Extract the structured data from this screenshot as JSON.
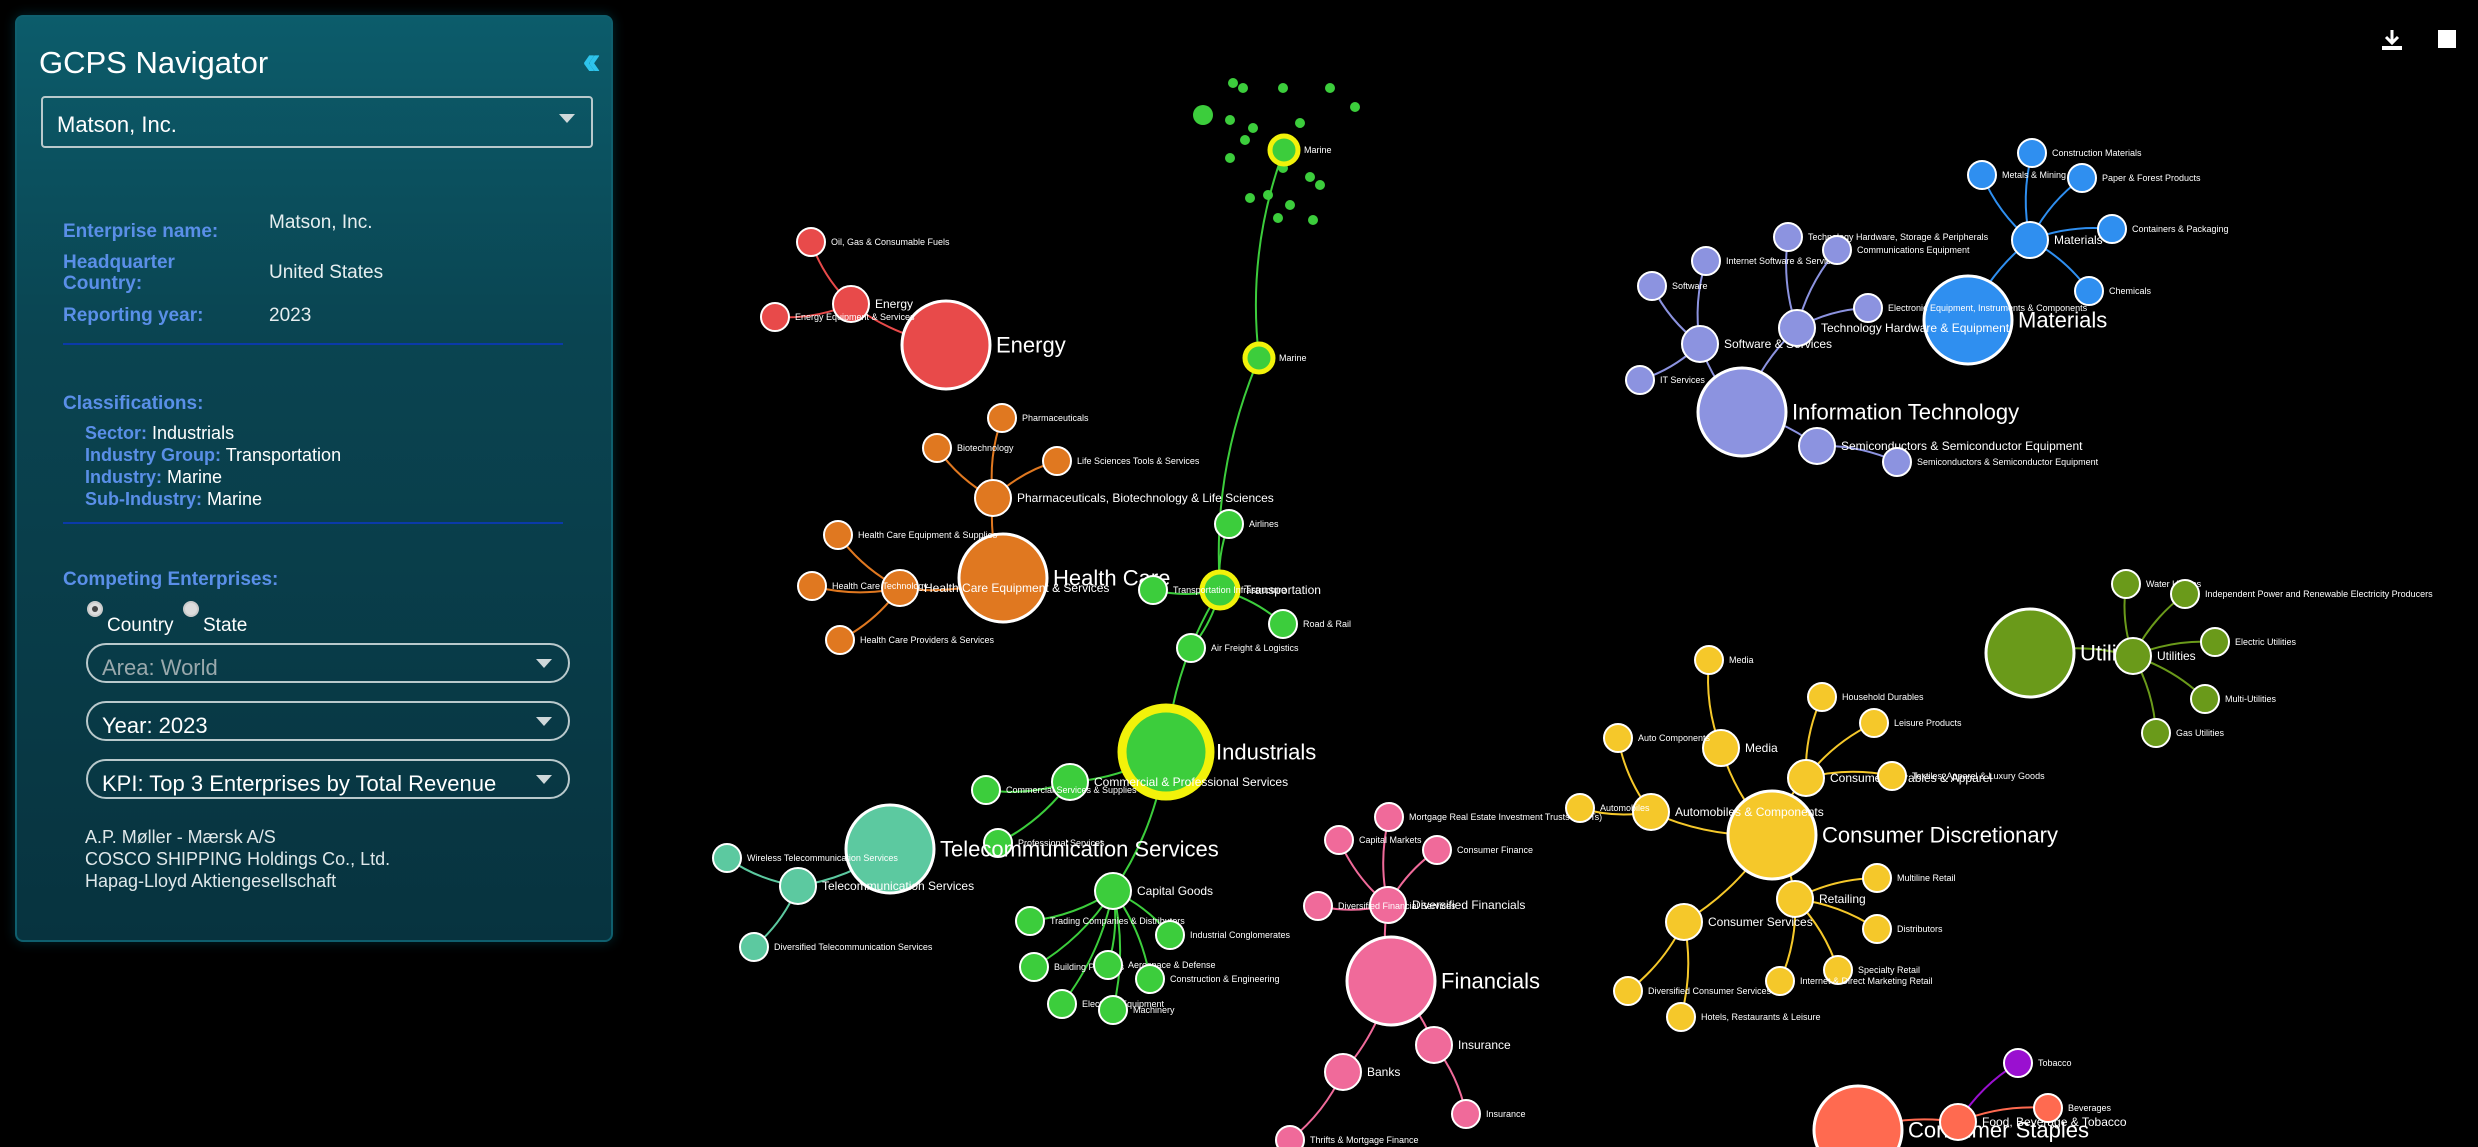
{
  "app": {
    "title": "GCPS Navigator",
    "company": "Matson, Inc."
  },
  "details": {
    "enterprise_label": "Enterprise name:",
    "enterprise_value": "Matson, Inc.",
    "hq_label": "Headquarter Country:",
    "hq_value": "United States",
    "year_label": "Reporting year:",
    "year_value": "2023"
  },
  "classifications": {
    "title": "Classifications:",
    "sector_label": "Sector:",
    "sector": "Industrials",
    "group_label": "Industry Group:",
    "group": "Transportation",
    "industry_label": "Industry:",
    "industry": "Marine",
    "sub_label": "Sub-Industry:",
    "sub": "Marine"
  },
  "competing": {
    "title": "Competing Enterprises:",
    "radio_country": "Country",
    "radio_state": "State",
    "area": "Area: World",
    "year": "Year: 2023",
    "kpi": "KPI: Top 3 Enterprises by Total Revenue",
    "list": [
      "A.P. Møller - Mærsk A/S",
      "COSCO SHIPPING Holdings Co., Ltd.",
      "Hapag-Lloyd Aktiengesellschaft"
    ]
  },
  "toolbar": {
    "download_icon": "download-icon",
    "fullscreen_icon": "square-icon"
  },
  "colors": {
    "energy": "#e84a4a",
    "materials": "#2f8ff0",
    "it": "#8c93e0",
    "utilities": "#6a9a1a",
    "health": "#e07820",
    "industrials": "#3ccd3c",
    "telecom": "#5cc9a0",
    "financials": "#f06a9a",
    "consumer_disc": "#f5c82a",
    "staples": "#ff6a50",
    "tobacco": "#9a10d0",
    "highlight": "#f2f20a"
  },
  "graph": {
    "nodes": [
      {
        "id": "energy",
        "l": "Energy",
        "c": "energy",
        "s": "lg"
      },
      {
        "id": "energy_g",
        "l": "Energy",
        "c": "energy",
        "s": "sm"
      },
      {
        "id": "ogcf",
        "l": "Oil, Gas & Consumable Fuels",
        "c": "energy",
        "s": "xs"
      },
      {
        "id": "eeq",
        "l": "Energy Equipment & Services",
        "c": "energy",
        "s": "xs"
      },
      {
        "id": "materials",
        "l": "Materials",
        "c": "materials",
        "s": "lg"
      },
      {
        "id": "mat_g",
        "l": "Materials",
        "c": "materials",
        "s": "sm"
      },
      {
        "id": "constr",
        "l": "Construction Materials",
        "c": "materials",
        "s": "xs"
      },
      {
        "id": "metals",
        "l": "Metals & Mining",
        "c": "materials",
        "s": "xs"
      },
      {
        "id": "paper",
        "l": "Paper & Forest Products",
        "c": "materials",
        "s": "xs"
      },
      {
        "id": "contain",
        "l": "Containers & Packaging",
        "c": "materials",
        "s": "xs"
      },
      {
        "id": "chem",
        "l": "Chemicals",
        "c": "materials",
        "s": "xs"
      },
      {
        "id": "it",
        "l": "Information Technology",
        "c": "it",
        "s": "lg"
      },
      {
        "id": "sw_g",
        "l": "Software & Services",
        "c": "it",
        "s": "sm"
      },
      {
        "id": "hw_g",
        "l": "Technology Hardware & Equipment",
        "c": "it",
        "s": "sm"
      },
      {
        "id": "semi_g",
        "l": "Semiconductors & Semiconductor Equipment",
        "c": "it",
        "s": "sm"
      },
      {
        "id": "semi",
        "l": "Semiconductors & Semiconductor Equipment",
        "c": "it",
        "s": "xs"
      },
      {
        "id": "software",
        "l": "Software",
        "c": "it",
        "s": "xs"
      },
      {
        "id": "itserv",
        "l": "IT Services",
        "c": "it",
        "s": "xs"
      },
      {
        "id": "isvc",
        "l": "Internet Software & Services",
        "c": "it",
        "s": "xs"
      },
      {
        "id": "ths",
        "l": "Technology Hardware, Storage & Peripherals",
        "c": "it",
        "s": "xs"
      },
      {
        "id": "comm",
        "l": "Communications Equipment",
        "c": "it",
        "s": "xs"
      },
      {
        "id": "elec",
        "l": "Electronic Equipment, Instruments & Components",
        "c": "it",
        "s": "xs"
      },
      {
        "id": "util",
        "l": "Utilities",
        "c": "utilities",
        "s": "lg"
      },
      {
        "id": "util_g",
        "l": "Utilities",
        "c": "utilities",
        "s": "sm"
      },
      {
        "id": "water",
        "l": "Water Utilities",
        "c": "utilities",
        "s": "xs"
      },
      {
        "id": "ipp",
        "l": "Independent Power and Renewable Electricity Producers",
        "c": "utilities",
        "s": "xs"
      },
      {
        "id": "eutil",
        "l": "Electric Utilities",
        "c": "utilities",
        "s": "xs"
      },
      {
        "id": "multi",
        "l": "Multi-Utilities",
        "c": "utilities",
        "s": "xs"
      },
      {
        "id": "gas",
        "l": "Gas Utilities",
        "c": "utilities",
        "s": "xs"
      },
      {
        "id": "health",
        "l": "Health Care",
        "c": "health",
        "s": "lg"
      },
      {
        "id": "pharma_g",
        "l": "Pharmaceuticals, Biotechnology & Life Sciences",
        "c": "health",
        "s": "sm"
      },
      {
        "id": "hce_g",
        "l": "Health Care Equipment & Services",
        "c": "health",
        "s": "sm"
      },
      {
        "id": "pharma",
        "l": "Pharmaceuticals",
        "c": "health",
        "s": "xs"
      },
      {
        "id": "biotech",
        "l": "Biotechnology",
        "c": "health",
        "s": "xs"
      },
      {
        "id": "lsts",
        "l": "Life Sciences Tools & Services",
        "c": "health",
        "s": "xs"
      },
      {
        "id": "hces",
        "l": "Health Care Equipment & Supplies",
        "c": "health",
        "s": "xs"
      },
      {
        "id": "hctech",
        "l": "Health Care Technology",
        "c": "health",
        "s": "xs"
      },
      {
        "id": "hcps",
        "l": "Health Care Providers & Services",
        "c": "health",
        "s": "xs"
      },
      {
        "id": "ind",
        "l": "Industrials",
        "c": "industrials",
        "s": "lg",
        "hl": true
      },
      {
        "id": "trans_g",
        "l": "Transportation",
        "c": "industrials",
        "s": "sm",
        "hl": true
      },
      {
        "id": "marine",
        "l": "Marine",
        "c": "industrials",
        "s": "xs",
        "hl": true
      },
      {
        "id": "airlines",
        "l": "Airlines",
        "c": "industrials",
        "s": "xs"
      },
      {
        "id": "tinf",
        "l": "Transportation Infrastructure",
        "c": "industrials",
        "s": "xs"
      },
      {
        "id": "road",
        "l": "Road & Rail",
        "c": "industrials",
        "s": "xs"
      },
      {
        "id": "airf",
        "l": "Air Freight & Logistics",
        "c": "industrials",
        "s": "xs"
      },
      {
        "id": "cps_g",
        "l": "Commercial & Professional Services",
        "c": "industrials",
        "s": "sm"
      },
      {
        "id": "css",
        "l": "Commercial Services & Supplies",
        "c": "industrials",
        "s": "xs"
      },
      {
        "id": "prof",
        "l": "Professional Services",
        "c": "industrials",
        "s": "xs"
      },
      {
        "id": "cap_g",
        "l": "Capital Goods",
        "c": "industrials",
        "s": "sm"
      },
      {
        "id": "tcd",
        "l": "Trading Companies & Distributors",
        "c": "industrials",
        "s": "xs"
      },
      {
        "id": "icong",
        "l": "Industrial Conglomerates",
        "c": "industrials",
        "s": "xs"
      },
      {
        "id": "bprod",
        "l": "Building Products",
        "c": "industrials",
        "s": "xs"
      },
      {
        "id": "aero",
        "l": "Aerospace & Defense",
        "c": "industrials",
        "s": "xs"
      },
      {
        "id": "ceng",
        "l": "Construction & Engineering",
        "c": "industrials",
        "s": "xs"
      },
      {
        "id": "eleq",
        "l": "Electrical Equipment",
        "c": "industrials",
        "s": "xs"
      },
      {
        "id": "mach",
        "l": "Machinery",
        "c": "industrials",
        "s": "xs"
      },
      {
        "id": "telecom",
        "l": "Telecommunication Services",
        "c": "telecom",
        "s": "lg"
      },
      {
        "id": "tel_g",
        "l": "Telecommunication Services",
        "c": "telecom",
        "s": "sm"
      },
      {
        "id": "wts",
        "l": "Wireless Telecommunication Services",
        "c": "telecom",
        "s": "xs"
      },
      {
        "id": "dts",
        "l": "Diversified Telecommunication Services",
        "c": "telecom",
        "s": "xs"
      },
      {
        "id": "fin",
        "l": "Financials",
        "c": "financials",
        "s": "lg"
      },
      {
        "id": "divfin_g",
        "l": "Diversified Financials",
        "c": "financials",
        "s": "sm"
      },
      {
        "id": "mreit",
        "l": "Mortgage Real Estate Investment Trusts (REITs)",
        "c": "financials",
        "s": "xs"
      },
      {
        "id": "capm",
        "l": "Capital Markets",
        "c": "financials",
        "s": "xs"
      },
      {
        "id": "cfin",
        "l": "Consumer Finance",
        "c": "financials",
        "s": "xs"
      },
      {
        "id": "dfs",
        "l": "Diversified Financial Services",
        "c": "financials",
        "s": "xs"
      },
      {
        "id": "ins_g",
        "l": "Insurance",
        "c": "financials",
        "s": "sm"
      },
      {
        "id": "ins",
        "l": "Insurance",
        "c": "financials",
        "s": "xs"
      },
      {
        "id": "banks_g",
        "l": "Banks",
        "c": "financials",
        "s": "sm"
      },
      {
        "id": "thrifts",
        "l": "Thrifts & Mortgage Finance",
        "c": "financials",
        "s": "xs"
      },
      {
        "id": "cd",
        "l": "Consumer Discretionary",
        "c": "consumer_disc",
        "s": "lg"
      },
      {
        "id": "media_g",
        "l": "Media",
        "c": "consumer_disc",
        "s": "sm"
      },
      {
        "id": "media",
        "l": "Media",
        "c": "consumer_disc",
        "s": "xs"
      },
      {
        "id": "auto_g",
        "l": "Automobiles & Components",
        "c": "consumer_disc",
        "s": "sm"
      },
      {
        "id": "autocomp",
        "l": "Auto Components",
        "c": "consumer_disc",
        "s": "xs"
      },
      {
        "id": "autos",
        "l": "Automobiles",
        "c": "consumer_disc",
        "s": "xs"
      },
      {
        "id": "cda_g",
        "l": "Consumer Durables & Apparel",
        "c": "consumer_disc",
        "s": "sm"
      },
      {
        "id": "hdur",
        "l": "Household Durables",
        "c": "consumer_disc",
        "s": "xs"
      },
      {
        "id": "leis",
        "l": "Leisure Products",
        "c": "consumer_disc",
        "s": "xs"
      },
      {
        "id": "tal",
        "l": "Textiles, Apparel & Luxury Goods",
        "c": "consumer_disc",
        "s": "xs"
      },
      {
        "id": "retail_g",
        "l": "Retailing",
        "c": "consumer_disc",
        "s": "sm"
      },
      {
        "id": "mline",
        "l": "Multiline Retail",
        "c": "consumer_disc",
        "s": "xs"
      },
      {
        "id": "dist",
        "l": "Distributors",
        "c": "consumer_disc",
        "s": "xs"
      },
      {
        "id": "spret",
        "l": "Specialty Retail",
        "c": "consumer_disc",
        "s": "xs"
      },
      {
        "id": "idmr",
        "l": "Internet & Direct Marketing Retail",
        "c": "consumer_disc",
        "s": "xs"
      },
      {
        "id": "cs_g",
        "l": "Consumer Services",
        "c": "consumer_disc",
        "s": "sm"
      },
      {
        "id": "dcs",
        "l": "Diversified Consumer Services",
        "c": "consumer_disc",
        "s": "xs"
      },
      {
        "id": "hrl",
        "l": "Hotels, Restaurants & Leisure",
        "c": "consumer_disc",
        "s": "xs"
      },
      {
        "id": "staples",
        "l": "Consumer Staples",
        "c": "staples",
        "s": "lg"
      },
      {
        "id": "fbt_g",
        "l": "Food, Beverage & Tobacco",
        "c": "staples",
        "s": "sm"
      },
      {
        "id": "bev",
        "l": "Beverages",
        "c": "staples",
        "s": "xs"
      },
      {
        "id": "tob",
        "l": "Tobacco",
        "c": "tobacco",
        "s": "xs"
      },
      {
        "id": "marine_focus",
        "l": "Marine",
        "c": "industrials",
        "s": "xs",
        "hl": true
      }
    ],
    "edges": [
      [
        "energy",
        "energy_g"
      ],
      [
        "energy_g",
        "ogcf"
      ],
      [
        "energy_g",
        "eeq"
      ],
      [
        "materials",
        "mat_g"
      ],
      [
        "mat_g",
        "constr"
      ],
      [
        "mat_g",
        "metals"
      ],
      [
        "mat_g",
        "paper"
      ],
      [
        "mat_g",
        "contain"
      ],
      [
        "mat_g",
        "chem"
      ],
      [
        "it",
        "sw_g"
      ],
      [
        "it",
        "hw_g"
      ],
      [
        "it",
        "semi_g"
      ],
      [
        "semi_g",
        "semi"
      ],
      [
        "sw_g",
        "software"
      ],
      [
        "sw_g",
        "itserv"
      ],
      [
        "sw_g",
        "isvc"
      ],
      [
        "hw_g",
        "ths"
      ],
      [
        "hw_g",
        "comm"
      ],
      [
        "hw_g",
        "elec"
      ],
      [
        "util",
        "util_g"
      ],
      [
        "util_g",
        "water"
      ],
      [
        "util_g",
        "ipp"
      ],
      [
        "util_g",
        "eutil"
      ],
      [
        "util_g",
        "multi"
      ],
      [
        "util_g",
        "gas"
      ],
      [
        "health",
        "pharma_g"
      ],
      [
        "health",
        "hce_g"
      ],
      [
        "pharma_g",
        "pharma"
      ],
      [
        "pharma_g",
        "biotech"
      ],
      [
        "pharma_g",
        "lsts"
      ],
      [
        "hce_g",
        "hces"
      ],
      [
        "hce_g",
        "hctech"
      ],
      [
        "hce_g",
        "hcps"
      ],
      [
        "ind",
        "trans_g"
      ],
      [
        "trans_g",
        "marine"
      ],
      [
        "trans_g",
        "airlines"
      ],
      [
        "trans_g",
        "tinf"
      ],
      [
        "trans_g",
        "road"
      ],
      [
        "trans_g",
        "airf"
      ],
      [
        "ind",
        "cps_g"
      ],
      [
        "cps_g",
        "css"
      ],
      [
        "cps_g",
        "prof"
      ],
      [
        "ind",
        "cap_g"
      ],
      [
        "cap_g",
        "tcd"
      ],
      [
        "cap_g",
        "icong"
      ],
      [
        "cap_g",
        "bprod"
      ],
      [
        "cap_g",
        "aero"
      ],
      [
        "cap_g",
        "ceng"
      ],
      [
        "cap_g",
        "eleq"
      ],
      [
        "cap_g",
        "mach"
      ],
      [
        "marine",
        "marine_focus"
      ],
      [
        "telecom",
        "tel_g"
      ],
      [
        "tel_g",
        "wts"
      ],
      [
        "tel_g",
        "dts"
      ],
      [
        "fin",
        "divfin_g"
      ],
      [
        "divfin_g",
        "mreit"
      ],
      [
        "divfin_g",
        "capm"
      ],
      [
        "divfin_g",
        "cfin"
      ],
      [
        "divfin_g",
        "dfs"
      ],
      [
        "fin",
        "ins_g"
      ],
      [
        "ins_g",
        "ins"
      ],
      [
        "fin",
        "banks_g"
      ],
      [
        "banks_g",
        "thrifts"
      ],
      [
        "cd",
        "media_g"
      ],
      [
        "media_g",
        "media"
      ],
      [
        "cd",
        "auto_g"
      ],
      [
        "auto_g",
        "autocomp"
      ],
      [
        "auto_g",
        "autos"
      ],
      [
        "cd",
        "cda_g"
      ],
      [
        "cda_g",
        "hdur"
      ],
      [
        "cda_g",
        "leis"
      ],
      [
        "cda_g",
        "tal"
      ],
      [
        "cd",
        "retail_g"
      ],
      [
        "retail_g",
        "mline"
      ],
      [
        "retail_g",
        "dist"
      ],
      [
        "retail_g",
        "spret"
      ],
      [
        "retail_g",
        "idmr"
      ],
      [
        "cd",
        "cs_g"
      ],
      [
        "cs_g",
        "dcs"
      ],
      [
        "cs_g",
        "hrl"
      ],
      [
        "staples",
        "fbt_g"
      ],
      [
        "fbt_g",
        "bev"
      ],
      [
        "fbt_g",
        "tob"
      ]
    ]
  }
}
